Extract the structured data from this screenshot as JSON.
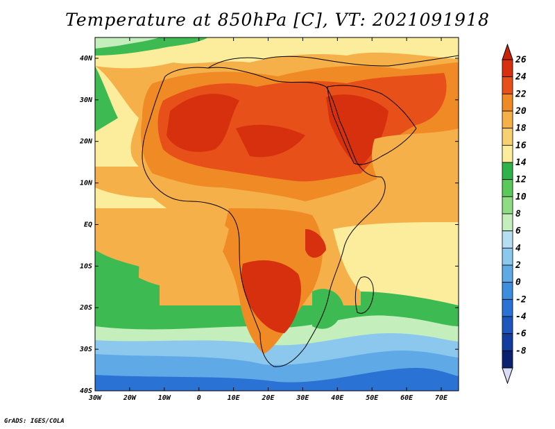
{
  "title": "Temperature at 850hPa [C], VT: 2021091918",
  "credit": "GrADS: IGES/COLA",
  "map": {
    "variable": "Temperature at 850hPa",
    "units": "C",
    "valid_time": "2021091918",
    "lon_range": [
      -30,
      75
    ],
    "lat_range": [
      -40,
      45
    ]
  },
  "axes": {
    "x_ticks": [
      {
        "value": -30,
        "label": "30W"
      },
      {
        "value": -20,
        "label": "20W"
      },
      {
        "value": -10,
        "label": "10W"
      },
      {
        "value": 0,
        "label": "0"
      },
      {
        "value": 10,
        "label": "10E"
      },
      {
        "value": 20,
        "label": "20E"
      },
      {
        "value": 30,
        "label": "30E"
      },
      {
        "value": 40,
        "label": "40E"
      },
      {
        "value": 50,
        "label": "50E"
      },
      {
        "value": 60,
        "label": "60E"
      },
      {
        "value": 70,
        "label": "70E"
      }
    ],
    "y_ticks": [
      {
        "value": 40,
        "label": "40N"
      },
      {
        "value": 30,
        "label": "30N"
      },
      {
        "value": 20,
        "label": "20N"
      },
      {
        "value": 10,
        "label": "10N"
      },
      {
        "value": 0,
        "label": "EQ"
      },
      {
        "value": -10,
        "label": "10S"
      },
      {
        "value": -20,
        "label": "20S"
      },
      {
        "value": -30,
        "label": "30S"
      },
      {
        "value": -40,
        "label": "40S"
      }
    ]
  },
  "colorbar": {
    "labels": [
      "26",
      "24",
      "22",
      "20",
      "18",
      "16",
      "14",
      "12",
      "10",
      "8",
      "6",
      "4",
      "2",
      "0",
      "-2",
      "-4",
      "-6",
      "-8"
    ],
    "colors": [
      "#d7300f",
      "#e8501a",
      "#f08a25",
      "#f5b04a",
      "#f8d070",
      "#fbed9c",
      "#2fb24a",
      "#5bc95a",
      "#8fdc84",
      "#c4eebc",
      "#b6def2",
      "#8cc7ee",
      "#5ea9e6",
      "#3e8ee0",
      "#2a72d4",
      "#1d56bd",
      "#123c9e",
      "#0a2070"
    ],
    "top_arrow_color": "#c9220a",
    "bottom_arrow_color": "#d8dcf8"
  },
  "palette": {
    "ocean_cold": "#2d70d0",
    "ocean_cool": "#6fb1e8",
    "ocean_mild": "#c9ecf5",
    "green": "#3dbb52",
    "light_green": "#8fdc84",
    "pale_yellow": "#fbed9c",
    "yellow": "#f8d070",
    "orange": "#f5b04a",
    "dark_orange": "#f08a25",
    "red": "#e8501a",
    "deep_red": "#d7300f"
  }
}
